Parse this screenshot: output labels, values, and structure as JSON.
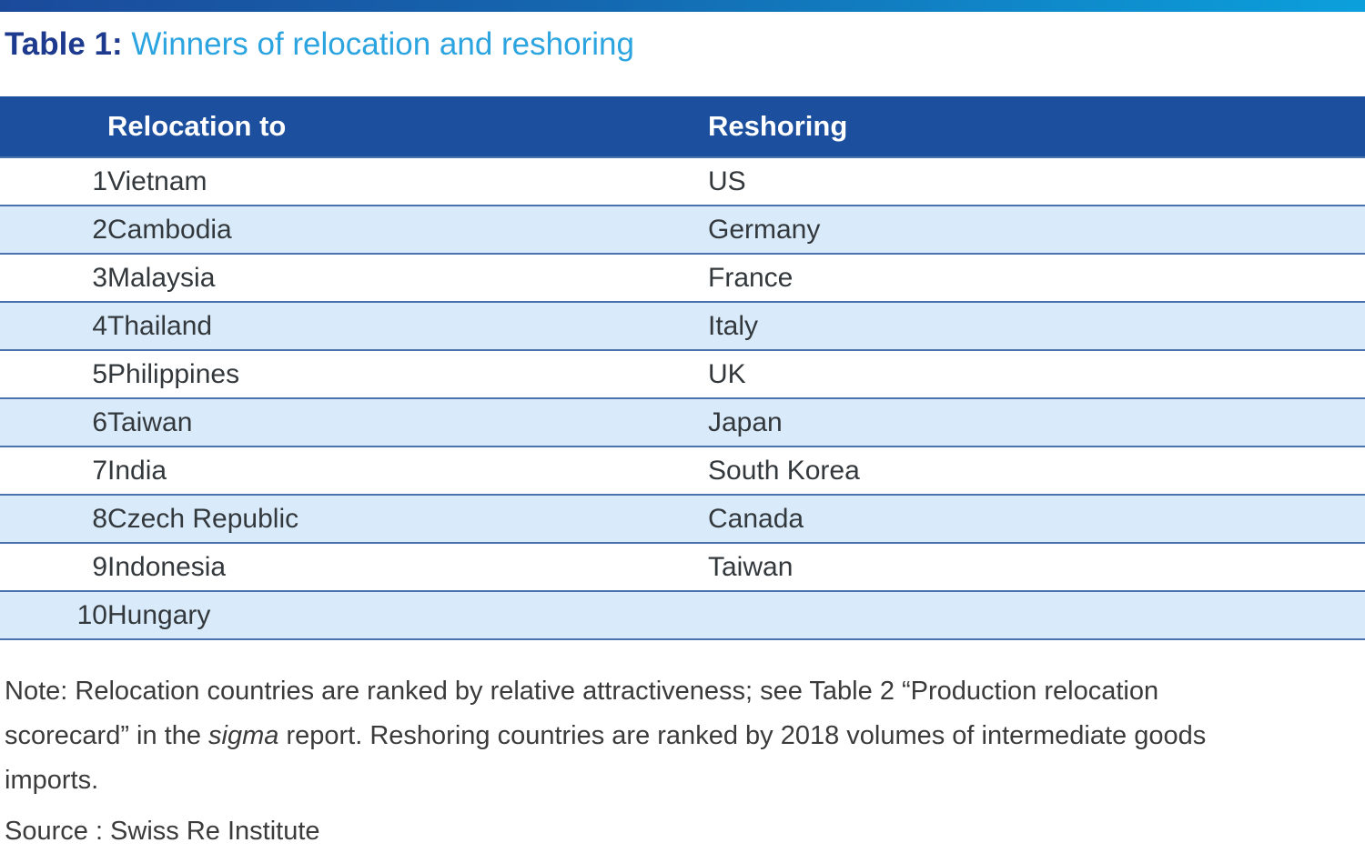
{
  "title": {
    "label": "Table 1:",
    "text": "Winners of relocation and reshoring"
  },
  "table": {
    "columns": {
      "rank": "",
      "relocation": "Relocation to",
      "reshoring": "Reshoring"
    },
    "rows": [
      {
        "rank": "1",
        "relocation": "Vietnam",
        "reshoring": "US"
      },
      {
        "rank": "2",
        "relocation": "Cambodia",
        "reshoring": "Germany"
      },
      {
        "rank": "3",
        "relocation": "Malaysia",
        "reshoring": "France"
      },
      {
        "rank": "4",
        "relocation": "Thailand",
        "reshoring": "Italy"
      },
      {
        "rank": "5",
        "relocation": "Philippines",
        "reshoring": "UK"
      },
      {
        "rank": "6",
        "relocation": "Taiwan",
        "reshoring": "Japan"
      },
      {
        "rank": "7",
        "relocation": "India",
        "reshoring": "South Korea"
      },
      {
        "rank": "8",
        "relocation": "Czech Republic",
        "reshoring": "Canada"
      },
      {
        "rank": "9",
        "relocation": "Indonesia",
        "reshoring": "Taiwan"
      },
      {
        "rank": "10",
        "relocation": "Hungary",
        "reshoring": ""
      }
    ]
  },
  "note": {
    "part1": "Note: Relocation countries are ranked by relative attractiveness; see Table 2 “Production relocation scorecard” in the ",
    "sigma": "sigma",
    "part2": " report. Reshoring countries are ranked by 2018 volumes of intermediate goods imports."
  },
  "source": "Source : Swiss Re Institute",
  "colors": {
    "topbar_gradient_start": "#1b4a9b",
    "topbar_gradient_end": "#0ba0dc",
    "title_dark_blue": "#1e3a8e",
    "title_light_blue": "#2ba4e0",
    "header_background": "#1d4f9f",
    "header_text": "#ffffff",
    "row_alt_background": "#d9ebfa",
    "row_divider": "#4a73ad",
    "body_text": "#33383c"
  }
}
